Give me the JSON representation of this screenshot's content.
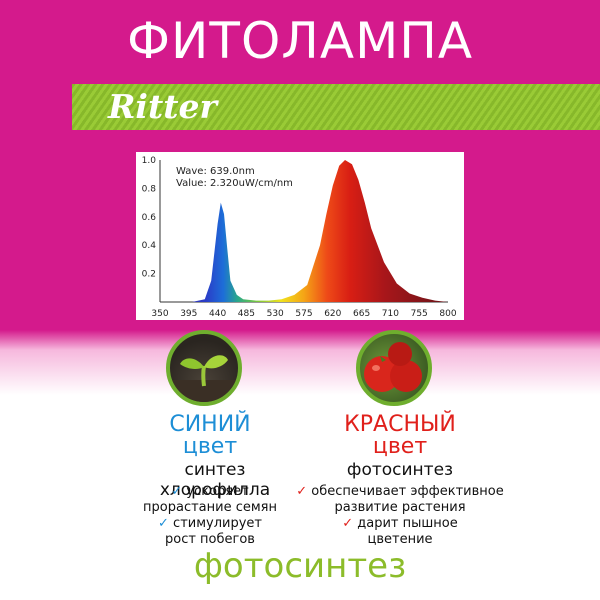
{
  "header": {
    "title": "ФИТОЛАМПА"
  },
  "brand": {
    "name": "Ritter"
  },
  "spectrum": {
    "wave_label": "Wave: 639.0nm",
    "value_label": "Value: 2.320uW/cm/nm"
  },
  "chart_data": {
    "type": "area",
    "title": "",
    "xlabel": "",
    "ylabel": "",
    "xlim": [
      350,
      800
    ],
    "ylim": [
      0,
      1.0
    ],
    "x_ticks": [
      350,
      395,
      440,
      485,
      530,
      575,
      620,
      665,
      710,
      755,
      800
    ],
    "y_ticks": [
      0.2,
      0.4,
      0.6,
      0.8,
      1.0
    ],
    "series": [
      {
        "x": [
          350,
          400,
          420,
          430,
          440,
          445,
          450,
          455,
          460,
          470,
          480,
          500,
          520,
          540,
          560,
          580,
          600,
          610,
          620,
          630,
          639,
          650,
          660,
          670,
          680,
          700,
          720,
          740,
          760,
          780,
          800
        ],
        "values": [
          0.0,
          0.0,
          0.02,
          0.15,
          0.55,
          0.7,
          0.62,
          0.38,
          0.15,
          0.05,
          0.02,
          0.01,
          0.01,
          0.02,
          0.05,
          0.12,
          0.4,
          0.62,
          0.82,
          0.96,
          1.0,
          0.97,
          0.86,
          0.7,
          0.52,
          0.28,
          0.13,
          0.06,
          0.03,
          0.01,
          0.0
        ]
      }
    ],
    "grid": false
  },
  "blue_col": {
    "title_line1": "СИНИЙ",
    "title_line2": "цвет",
    "subtitle": "синтез хлорофилла",
    "items": [
      {
        "line1": "ускоряет",
        "line2": "прорастание семян"
      },
      {
        "line1": "стимулирует",
        "line2": "рост побегов"
      }
    ]
  },
  "red_col": {
    "title_line1": "КРАСНЫЙ",
    "title_line2": "цвет",
    "subtitle": "фотосинтез",
    "items": [
      {
        "line1": "обеспечивает эффективное",
        "line2": "развитие растения"
      },
      {
        "line1": "дарит пышное",
        "line2": "цветение"
      }
    ]
  },
  "footer": {
    "text": "фотосинтез"
  },
  "icons": {
    "check": "✓",
    "sprout": "sprout-icon",
    "tomato": "tomato-icon"
  },
  "colors": {
    "magenta": "#d41a8c",
    "green": "#8cbc2a",
    "blue": "#1d8ed6",
    "red": "#e0201b"
  }
}
